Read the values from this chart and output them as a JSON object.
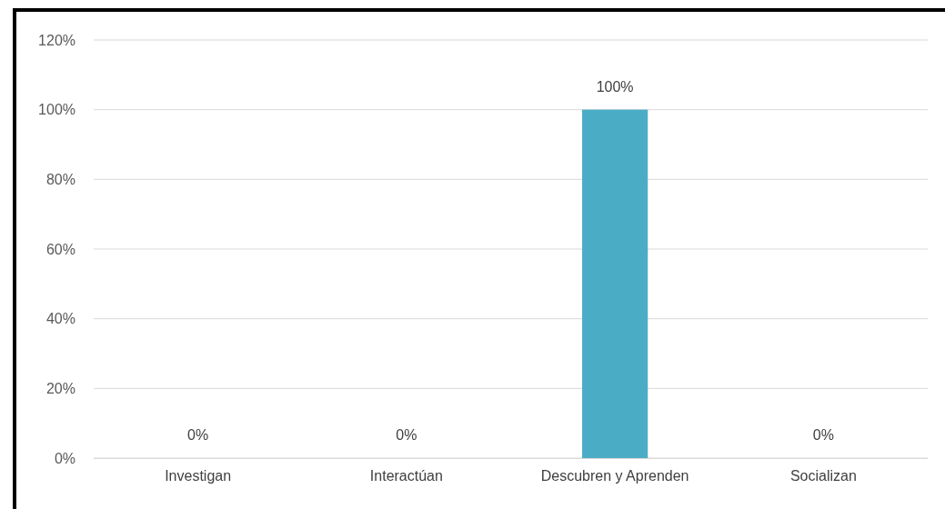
{
  "chart_data": {
    "type": "bar",
    "categories": [
      "Investigan",
      "Interactúan",
      "Descubren y Aprenden",
      "Socializan"
    ],
    "values": [
      0,
      0,
      100,
      0
    ],
    "color": "#4bacc6",
    "value_labels": [
      "0%",
      "0%",
      "100%",
      "0%"
    ],
    "ylim": [
      0,
      120
    ],
    "yticks": [
      {
        "value": 0,
        "label": "0%"
      },
      {
        "value": 20,
        "label": "20%"
      },
      {
        "value": 40,
        "label": "40%"
      },
      {
        "value": 60,
        "label": "60%"
      },
      {
        "value": 80,
        "label": "80%"
      },
      {
        "value": 100,
        "label": "100%"
      },
      {
        "value": 120,
        "label": "120%"
      }
    ],
    "grid": "y"
  }
}
